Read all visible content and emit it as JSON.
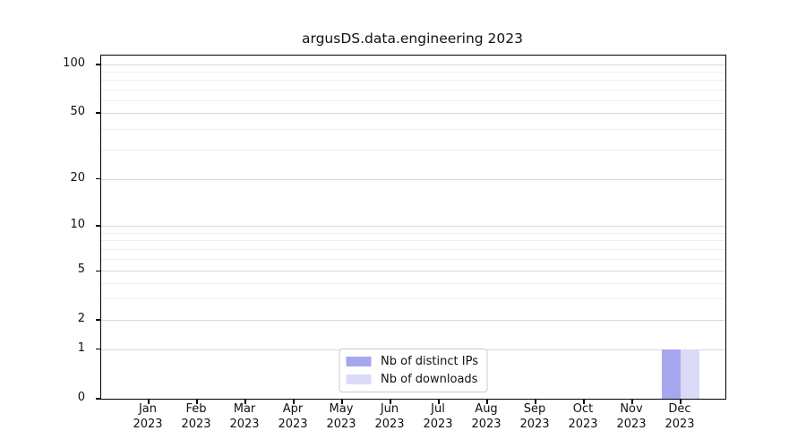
{
  "chart_data": {
    "type": "bar",
    "title": "argusDS.data.engineering 2023",
    "x_year": "2023",
    "categories": [
      "Jan\n2023",
      "Feb\n2023",
      "Mar\n2023",
      "Apr\n2023",
      "May\n2023",
      "Jun\n2023",
      "Jul\n2023",
      "Aug\n2023",
      "Sep\n2023",
      "Oct\n2023",
      "Nov\n2023",
      "Dec\n2023"
    ],
    "series": [
      {
        "name": "Nb of distinct IPs",
        "color": "#a7a7f0",
        "values": [
          0,
          0,
          0,
          0,
          0,
          0,
          0,
          0,
          0,
          0,
          0,
          1
        ]
      },
      {
        "name": "Nb of downloads",
        "color": "#dbdbf8",
        "values": [
          0,
          0,
          0,
          0,
          0,
          0,
          0,
          0,
          0,
          0,
          0,
          1
        ]
      }
    ],
    "yscale": "symlog",
    "ylim": [
      0,
      112
    ],
    "y_ticks": [
      0,
      1,
      2,
      5,
      10,
      20,
      50,
      100
    ],
    "y_minor_ticks": [
      3,
      4,
      6,
      7,
      8,
      9,
      30,
      40,
      60,
      70,
      80,
      90
    ],
    "grid": "horizontal",
    "legend_position": "lower center",
    "colors": {
      "major_grid": "#d9d9d9",
      "minor_grid": "#efefef",
      "axis": "#000000",
      "background": "#ffffff"
    }
  }
}
